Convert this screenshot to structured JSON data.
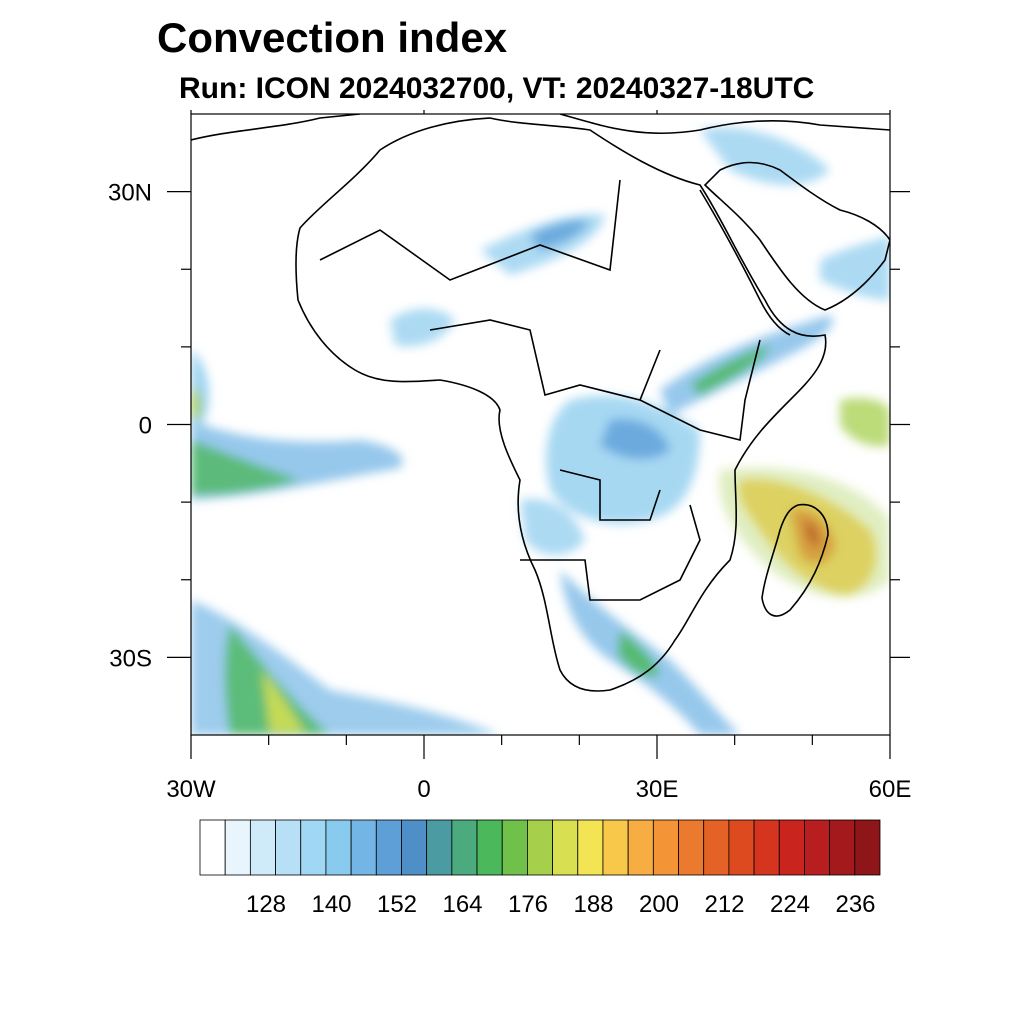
{
  "title": "Convection index",
  "subtitle": "Run: ICON 2024032700,  VT: 20240327-18UTC",
  "map": {
    "lon_range": [
      -30,
      60
    ],
    "lat_range": [
      -40,
      40
    ],
    "lon_ticks": [
      {
        "value": -30,
        "label": "30W"
      },
      {
        "value": 0,
        "label": "0"
      },
      {
        "value": 30,
        "label": "30E"
      },
      {
        "value": 60,
        "label": "60E"
      }
    ],
    "lat_ticks": [
      {
        "value": 30,
        "label": "30N"
      },
      {
        "value": 0,
        "label": "0"
      },
      {
        "value": -30,
        "label": "30S"
      }
    ],
    "minor_lon_ticks": [
      -20,
      -10,
      10,
      20,
      40,
      50
    ],
    "minor_lat_ticks": [
      20,
      10,
      -10,
      -20
    ]
  },
  "colorbar": {
    "colors": [
      "#ffffff",
      "#e8f5fc",
      "#cfeaf8",
      "#b7e0f6",
      "#a0d7f4",
      "#89cbee",
      "#73b6e6",
      "#5e9fd8",
      "#4f8fc7",
      "#4b9ca2",
      "#4caa7f",
      "#4cb85c",
      "#6fc14a",
      "#a6cf4c",
      "#d8df50",
      "#f2e452",
      "#f8c84a",
      "#f8ad42",
      "#f39437",
      "#ec7a2e",
      "#e56226",
      "#dd4a20",
      "#d5341e",
      "#c9251e",
      "#b81e1f",
      "#a41a1c",
      "#8e1518"
    ],
    "labels": [
      "128",
      "140",
      "152",
      "164",
      "176",
      "188",
      "200",
      "212",
      "224",
      "236"
    ]
  }
}
